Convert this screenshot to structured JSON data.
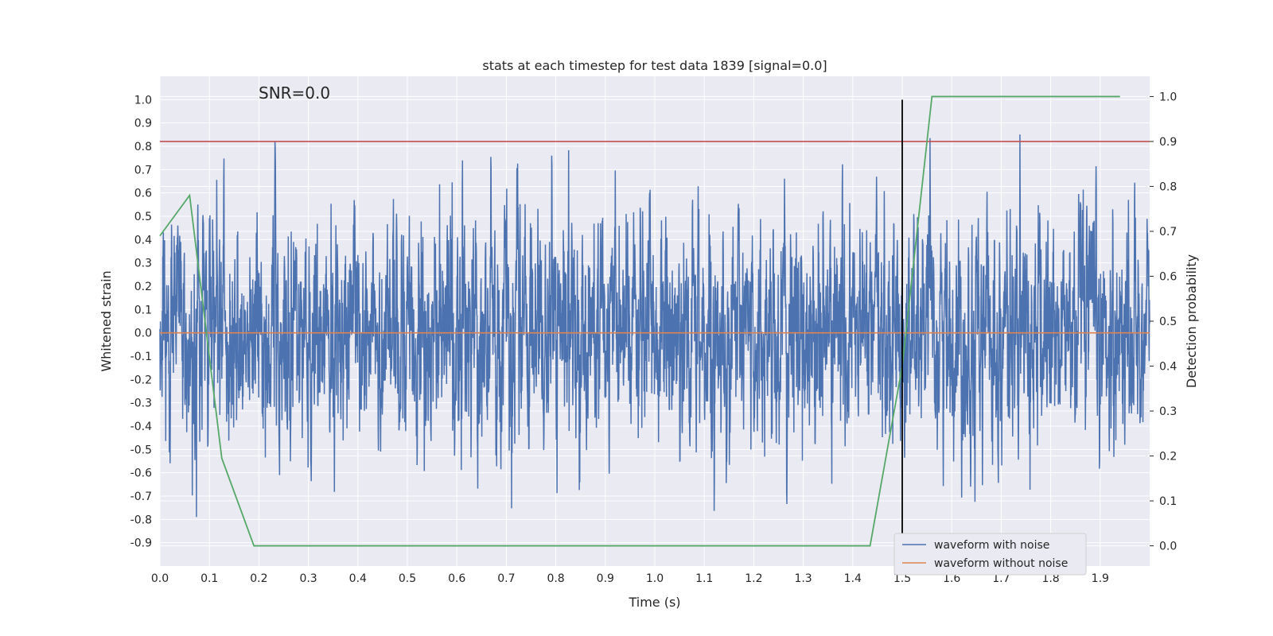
{
  "chart_data": {
    "type": "line",
    "title": "stats at each timestep for test data 1839 [signal=0.0]",
    "annotation": "SNR=0.0",
    "xlabel": "Time (s)",
    "ylabel_left": "Whitened strain",
    "ylabel_right": "Detection probability",
    "xlim": [
      0.0,
      2.0
    ],
    "ylim_left": [
      -1.0,
      1.1
    ],
    "ylim_right": [
      -0.045,
      1.045
    ],
    "grid": true,
    "background_color": "#eaeaf2",
    "legend_placement": "lower-right",
    "x_ticks": [
      "0.0",
      "0.1",
      "0.2",
      "0.3",
      "0.4",
      "0.5",
      "0.6",
      "0.7",
      "0.8",
      "0.9",
      "1.0",
      "1.1",
      "1.2",
      "1.3",
      "1.4",
      "1.5",
      "1.6",
      "1.7",
      "1.8",
      "1.9"
    ],
    "y_left_ticks": [
      "1.0",
      "0.9",
      "0.8",
      "0.7",
      "0.6",
      "0.5",
      "0.4",
      "0.3",
      "0.2",
      "0.1",
      "0.0",
      "-0.1",
      "-0.2",
      "-0.3",
      "-0.4",
      "-0.5",
      "-0.6",
      "-0.7",
      "-0.8",
      "-0.9"
    ],
    "y_right_ticks": [
      "1.0",
      "0.9",
      "0.8",
      "0.7",
      "0.6",
      "0.5",
      "0.4",
      "0.3",
      "0.2",
      "0.1",
      "0.0"
    ],
    "series": [
      {
        "name": "waveform with noise",
        "axis": "left",
        "color": "#4c72b0",
        "kind": "noise",
        "x_range": [
          0.0,
          2.0
        ],
        "approx_range": [
          -0.82,
          1.0
        ]
      },
      {
        "name": "waveform without noise",
        "axis": "left",
        "color": "#dd8452",
        "x": [
          0.0,
          2.0
        ],
        "y": [
          0.0,
          0.0
        ]
      },
      {
        "name": "",
        "axis": "right",
        "color": "#55a868",
        "x": [
          0.0,
          0.06,
          0.125,
          0.19,
          0.3,
          0.5,
          0.8,
          1.0,
          1.2,
          1.4,
          1.435,
          1.5,
          1.56,
          1.6,
          1.8,
          1.94
        ],
        "y": [
          0.69,
          0.78,
          0.195,
          0.0,
          0.0,
          0.0,
          0.0,
          0.0,
          0.0,
          0.0,
          0.0,
          0.4,
          1.0,
          1.0,
          1.0,
          1.0
        ]
      }
    ],
    "hlines": [
      {
        "axis": "right",
        "y": 0.9,
        "color": "#c44e52"
      }
    ],
    "vlines": [
      {
        "axis": "left",
        "x": 1.5,
        "y_range": [
          -0.9,
          1.0
        ],
        "color": "#000000"
      }
    ]
  }
}
